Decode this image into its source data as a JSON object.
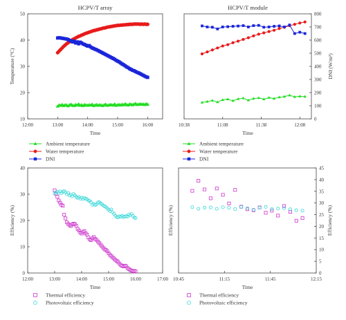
{
  "colors": {
    "ambient": "#22dd22",
    "water": "#e81b1b",
    "dni": "#1a25d8",
    "thermal": "#cc33cc",
    "pv": "#33d6d6"
  },
  "chart_data": [
    {
      "type": "line",
      "title": "HCPV/T array",
      "xlabel": "Time",
      "ylabel": "Temperature (°C)",
      "ylabel_right": "",
      "xlim": [
        720,
        990
      ],
      "ylim": [
        10,
        50
      ],
      "ylim_right": null,
      "xticks": [
        "12:00",
        "13:00",
        "14:00",
        "15:00",
        "16:00"
      ],
      "xtick_values": [
        720,
        780,
        840,
        900,
        960
      ],
      "yticks": [
        10,
        20,
        30,
        40,
        50
      ],
      "yticks_right": [],
      "legend_position": "below",
      "series": [
        {
          "name": "Ambient temperature",
          "axis": "left",
          "marker": "triangle",
          "color_key": "ambient",
          "dense": true,
          "x": [
            780,
            783,
            786,
            789,
            792,
            795,
            798,
            801,
            804,
            807,
            810,
            813,
            816,
            819,
            822,
            825,
            828,
            831,
            834,
            837,
            840,
            843,
            846,
            849,
            852,
            855,
            858,
            861,
            864,
            867,
            870,
            873,
            876,
            879,
            882,
            885,
            888,
            891,
            894,
            897,
            900,
            903,
            906,
            909,
            912,
            915,
            918,
            921,
            924,
            927,
            930,
            933,
            936,
            939,
            942,
            945,
            948,
            951,
            954,
            957,
            960
          ],
          "y": [
            14.8,
            15.2,
            15.1,
            15.4,
            15.0,
            15.3,
            15.2,
            14.9,
            15.3,
            15.5,
            15.1,
            15.0,
            15.4,
            15.2,
            15.6,
            15.1,
            15.3,
            15.0,
            15.4,
            15.2,
            15.1,
            15.3,
            15.2,
            15.5,
            15.0,
            15.2,
            15.4,
            15.1,
            15.3,
            15.2,
            15.0,
            15.3,
            15.5,
            15.1,
            15.2,
            15.4,
            15.3,
            15.2,
            15.6,
            15.1,
            15.3,
            15.4,
            15.2,
            15.5,
            15.3,
            15.7,
            15.4,
            15.2,
            15.6,
            15.5,
            15.3,
            15.6,
            15.8,
            15.4,
            15.5,
            15.7,
            15.5,
            15.6,
            15.4,
            15.7,
            15.5
          ]
        },
        {
          "name": "Water temperature",
          "axis": "left",
          "marker": "circle",
          "color_key": "water",
          "dense": true,
          "x": [
            780,
            783,
            786,
            789,
            792,
            795,
            798,
            801,
            804,
            807,
            810,
            813,
            816,
            819,
            822,
            825,
            828,
            831,
            834,
            837,
            840,
            843,
            846,
            849,
            852,
            855,
            858,
            861,
            864,
            867,
            870,
            873,
            876,
            879,
            882,
            885,
            888,
            891,
            894,
            897,
            900,
            903,
            906,
            909,
            912,
            915,
            918,
            921,
            924,
            927,
            930,
            933,
            936,
            939,
            942,
            945,
            948,
            951,
            954,
            957,
            960
          ],
          "y": [
            35.2,
            35.8,
            36.4,
            37.0,
            37.6,
            38.1,
            38.6,
            39.0,
            39.4,
            39.8,
            40.2,
            40.5,
            40.8,
            41.1,
            41.4,
            41.6,
            41.9,
            42.1,
            42.4,
            42.6,
            42.8,
            43.0,
            43.2,
            43.4,
            43.6,
            43.7,
            43.9,
            44.0,
            44.2,
            44.3,
            44.5,
            44.6,
            44.7,
            44.9,
            45.0,
            45.1,
            45.2,
            45.3,
            45.4,
            45.5,
            45.6,
            45.6,
            45.7,
            45.7,
            45.8,
            45.8,
            45.9,
            45.9,
            46.0,
            46.0,
            46.0,
            46.1,
            46.1,
            46.1,
            46.1,
            46.0,
            46.1,
            46.0,
            46.1,
            46.0,
            46.0
          ]
        },
        {
          "name": "DNI",
          "axis": "left",
          "marker": "square",
          "color_key": "dni",
          "dense": true,
          "x": [
            780,
            783,
            786,
            789,
            792,
            795,
            798,
            801,
            804,
            807,
            810,
            813,
            816,
            819,
            822,
            825,
            828,
            831,
            834,
            837,
            840,
            843,
            846,
            849,
            852,
            855,
            858,
            861,
            864,
            867,
            870,
            873,
            876,
            879,
            882,
            885,
            888,
            891,
            894,
            897,
            900,
            903,
            906,
            909,
            912,
            915,
            918,
            921,
            924,
            927,
            930,
            933,
            936,
            939,
            942,
            945,
            948,
            951,
            954,
            957,
            960
          ],
          "y": [
            40.8,
            40.9,
            40.8,
            40.7,
            40.6,
            40.5,
            40.4,
            40.2,
            39.9,
            39.6,
            39.3,
            39.6,
            38.9,
            39.3,
            38.6,
            39.2,
            38.9,
            38.5,
            38.3,
            38.0,
            37.7,
            37.9,
            37.4,
            37.0,
            36.8,
            36.5,
            36.3,
            36.0,
            35.7,
            35.4,
            35.1,
            34.8,
            34.5,
            34.2,
            33.9,
            33.6,
            33.3,
            33.0,
            32.7,
            32.3,
            32.0,
            31.7,
            31.3,
            30.9,
            30.6,
            30.2,
            29.8,
            29.5,
            29.1,
            28.8,
            28.5,
            28.3,
            28.0,
            27.7,
            27.5,
            27.2,
            26.9,
            26.6,
            26.3,
            26.0,
            25.8
          ]
        }
      ]
    },
    {
      "type": "line",
      "title": "HCPV/T module",
      "xlabel": "Time",
      "ylabel": "",
      "ylabel_right": "DNI (W/m²)",
      "xlim": [
        638,
        737
      ],
      "ylim": [
        10,
        50
      ],
      "ylim_right": [
        0,
        800
      ],
      "xticks": [
        "10:38",
        "11:08",
        "11:38",
        "12:08"
      ],
      "xtick_values": [
        638,
        668,
        698,
        728
      ],
      "yticks": [],
      "yticks_right": [
        0,
        100,
        200,
        300,
        400,
        500,
        600,
        700,
        800
      ],
      "legend_position": "below",
      "series": [
        {
          "name": "Ambient temperature",
          "axis": "right",
          "marker": "triangle",
          "color_key": "ambient",
          "dense": false,
          "x": [
            652,
            656,
            660,
            664,
            668,
            672,
            676,
            680,
            684,
            688,
            692,
            696,
            700,
            704,
            708,
            712,
            716,
            720,
            724,
            728,
            732
          ],
          "y": [
            125,
            132,
            140,
            128,
            145,
            150,
            138,
            152,
            158,
            142,
            155,
            160,
            150,
            162,
            155,
            165,
            170,
            180,
            168,
            172,
            170
          ]
        },
        {
          "name": "Water temperature",
          "axis": "right",
          "marker": "circle",
          "color_key": "water",
          "dense": false,
          "x": [
            652,
            656,
            660,
            664,
            668,
            672,
            676,
            680,
            684,
            688,
            692,
            696,
            700,
            704,
            708,
            712,
            716,
            720,
            724,
            728,
            732
          ],
          "y": [
            495,
            510,
            525,
            540,
            555,
            565,
            580,
            592,
            605,
            618,
            632,
            645,
            655,
            665,
            675,
            688,
            698,
            710,
            720,
            730,
            738
          ]
        },
        {
          "name": "DNI",
          "axis": "right",
          "marker": "square",
          "color_key": "dni",
          "dense": false,
          "x": [
            652,
            656,
            660,
            664,
            668,
            672,
            676,
            680,
            684,
            688,
            692,
            696,
            700,
            704,
            708,
            712,
            716,
            720,
            724,
            728,
            732
          ],
          "y": [
            708,
            700,
            698,
            685,
            700,
            702,
            705,
            707,
            710,
            700,
            710,
            712,
            698,
            700,
            705,
            708,
            700,
            715,
            650,
            660,
            650
          ]
        }
      ]
    },
    {
      "type": "scatter",
      "title": "",
      "xlabel": "Time",
      "ylabel": "Efficiency (%)",
      "ylabel_right": "",
      "xlim": [
        720,
        1020
      ],
      "ylim": [
        0,
        40
      ],
      "ylim_right": null,
      "xticks": [
        "12:00",
        "13:00",
        "14:00",
        "15:00",
        "16:00",
        "17:00"
      ],
      "xtick_values": [
        720,
        780,
        840,
        900,
        960,
        1020
      ],
      "yticks": [
        0,
        10,
        20,
        30,
        40
      ],
      "yticks_right": [],
      "legend_position": "below",
      "series": [
        {
          "name": "Thermal efficiency",
          "axis": "left",
          "marker": "open-square",
          "color_key": "thermal",
          "x": [
            780,
            783,
            786,
            789,
            792,
            795,
            798,
            801,
            804,
            807,
            810,
            813,
            816,
            819,
            822,
            825,
            828,
            831,
            834,
            837,
            840,
            843,
            846,
            849,
            852,
            855,
            858,
            861,
            864,
            867,
            870,
            873,
            876,
            879,
            882,
            885,
            888,
            891,
            894,
            897,
            900,
            903,
            906,
            909,
            912,
            915,
            918,
            921,
            924,
            927,
            930,
            933,
            936,
            939,
            942,
            945,
            948,
            951,
            954,
            957,
            960
          ],
          "y": [
            31.5,
            30.1,
            29.0,
            27.6,
            26.8,
            26.0,
            25.6,
            22.2,
            20.8,
            19.3,
            18.7,
            18.2,
            17.9,
            18.5,
            18.8,
            18.6,
            18.0,
            16.8,
            16.2,
            15.4,
            15.0,
            15.6,
            16.0,
            15.1,
            14.6,
            13.5,
            12.8,
            12.5,
            13.2,
            13.7,
            13.0,
            12.6,
            12.0,
            11.5,
            10.8,
            10.2,
            9.6,
            9.0,
            8.8,
            8.3,
            7.5,
            6.9,
            6.4,
            5.9,
            5.5,
            5.0,
            4.6,
            4.2,
            3.6,
            3.0,
            2.7,
            2.5,
            2.8,
            2.6,
            1.9,
            1.5,
            1.1,
            0.9,
            0.7,
            0.8,
            0.6
          ]
        },
        {
          "name": "Photovoltaic efficiency",
          "axis": "left",
          "marker": "open-circle",
          "color_key": "pv",
          "x": [
            780,
            783,
            786,
            789,
            792,
            795,
            798,
            801,
            804,
            807,
            810,
            813,
            816,
            819,
            822,
            825,
            828,
            831,
            834,
            837,
            840,
            843,
            846,
            849,
            852,
            855,
            858,
            861,
            864,
            867,
            870,
            873,
            876,
            879,
            882,
            885,
            888,
            891,
            894,
            897,
            900,
            903,
            906,
            909,
            912,
            915,
            918,
            921,
            924,
            927,
            930,
            933,
            936,
            939,
            942,
            945,
            948,
            951,
            954,
            957,
            960
          ],
          "y": [
            30.2,
            30.7,
            31.0,
            30.5,
            31.1,
            30.4,
            30.9,
            31.2,
            30.8,
            30.0,
            30.5,
            29.5,
            29.8,
            29.2,
            30.1,
            29.6,
            29.0,
            28.6,
            28.9,
            28.3,
            28.7,
            28.2,
            28.6,
            28.3,
            28.1,
            27.6,
            27.4,
            26.9,
            26.0,
            26.3,
            25.9,
            26.1,
            26.8,
            27.0,
            26.5,
            26.2,
            25.7,
            25.4,
            25.1,
            24.6,
            24.1,
            23.6,
            24.2,
            23.1,
            22.5,
            21.8,
            21.3,
            21.2,
            21.6,
            21.4,
            21.8,
            21.3,
            21.5,
            21.6,
            21.5,
            22.3,
            21.9,
            22.5,
            21.7,
            21.1,
            20.9
          ]
        }
      ]
    },
    {
      "type": "scatter",
      "title": "",
      "xlabel": "Time",
      "ylabel": "Efficiency (%)",
      "ylabel_right": "Efficiency (%)",
      "xlim": [
        645,
        735
      ],
      "ylim": [
        0,
        45
      ],
      "ylim_right": [
        0,
        45
      ],
      "xticks": [
        "10:45",
        "11:15",
        "11:45",
        "12:15"
      ],
      "xtick_values": [
        645,
        675,
        705,
        735
      ],
      "yticks": [],
      "yticks_right": [
        0,
        5,
        10,
        15,
        20,
        25,
        30,
        35,
        40,
        45
      ],
      "legend_position": "below",
      "series": [
        {
          "name": "Thermal efficiency",
          "axis": "right",
          "marker": "open-square",
          "color_key": "thermal",
          "x": [
            654,
            658,
            662,
            666,
            670,
            674,
            678,
            682,
            686,
            690,
            694,
            698,
            702,
            706,
            710,
            714,
            718,
            722,
            726
          ],
          "y": [
            35.2,
            39.5,
            35.8,
            32.0,
            36.2,
            33.5,
            29.8,
            35.6,
            28.4,
            27.3,
            26.9,
            28.1,
            25.8,
            26.7,
            24.6,
            28.7,
            26.2,
            22.4,
            23.5
          ]
        },
        {
          "name": "Photovoltaic efficiency",
          "axis": "right",
          "marker": "open-circle",
          "color_key": "pv",
          "x": [
            654,
            658,
            662,
            666,
            670,
            674,
            678,
            682,
            686,
            690,
            694,
            698,
            702,
            706,
            710,
            714,
            718,
            722,
            726
          ],
          "y": [
            28.2,
            27.5,
            28.0,
            28.1,
            27.5,
            28.2,
            27.9,
            27.4,
            28.3,
            27.8,
            27.1,
            28.0,
            28.3,
            27.4,
            27.6,
            27.8,
            27.3,
            26.9,
            26.7
          ]
        }
      ]
    }
  ]
}
